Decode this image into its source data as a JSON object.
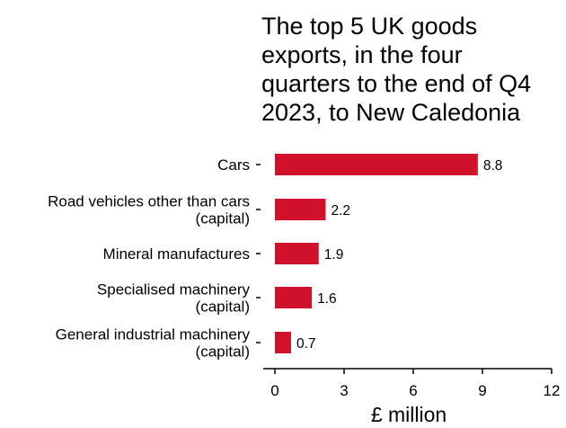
{
  "chart_data": {
    "type": "bar",
    "orientation": "horizontal",
    "title": "The top 5 UK goods exports, in the four quarters to the end of Q4 2023, to New Caledonia",
    "title_lines": [
      "The top 5 UK goods",
      "exports, in the four",
      "quarters to the end of Q4",
      "2023, to New Caledonia"
    ],
    "categories": [
      [
        "Cars"
      ],
      [
        "Road vehicles other than cars",
        "(capital)"
      ],
      [
        "Mineral manufactures"
      ],
      [
        "Specialised machinery",
        "(capital)"
      ],
      [
        "General industrial machinery",
        "(capital)"
      ]
    ],
    "values": [
      8.8,
      2.2,
      1.9,
      1.6,
      0.7
    ],
    "value_labels": [
      "8.8",
      "2.2",
      "1.9",
      "1.6",
      "0.7"
    ],
    "xlabel": "£ million",
    "ylabel": "",
    "xlim": [
      0,
      12
    ],
    "xticks": [
      0,
      3,
      6,
      9,
      12
    ],
    "grid": false,
    "bar_color": "#d0112b"
  }
}
